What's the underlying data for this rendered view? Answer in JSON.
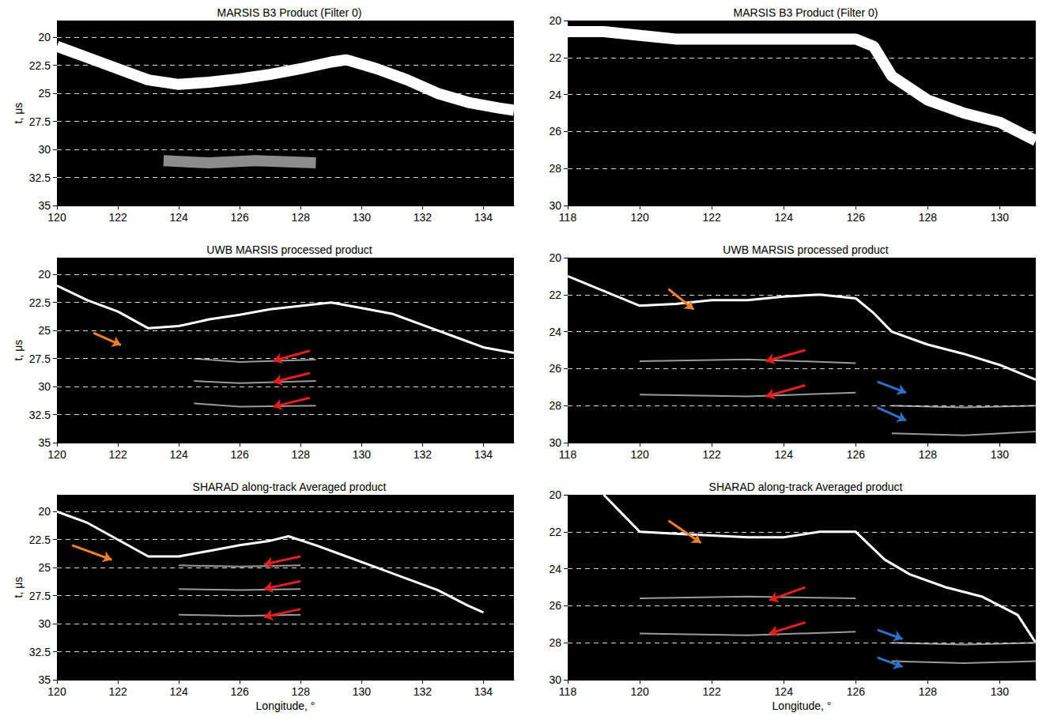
{
  "chart_data": [
    {
      "type": "line",
      "title": "MARSIS B3 Product (Filter 0)",
      "y_label": "t, μs",
      "xlim": [
        120,
        135
      ],
      "xticks": [
        120,
        122,
        124,
        126,
        128,
        130,
        132,
        134
      ],
      "ylim": [
        35,
        18.5
      ],
      "yticks": [
        20,
        22.5,
        25,
        27.5,
        30,
        32.5,
        35
      ],
      "grid": true,
      "series": [
        {
          "color": "#ffffff",
          "line_style": "thick",
          "x": [
            120,
            121,
            122,
            123,
            124,
            125,
            126,
            127,
            128,
            129,
            129.5,
            130.5,
            131.5,
            132.5,
            133.5,
            134.5,
            135
          ],
          "values": [
            20.8,
            21.8,
            22.8,
            23.8,
            24.2,
            24,
            23.7,
            23.3,
            22.8,
            22.2,
            22,
            22.8,
            23.8,
            25,
            25.8,
            26.3,
            26.5
          ]
        },
        {
          "color": "#8c8c8c",
          "line_style": "thick",
          "x": [
            123.5,
            125,
            126.5,
            128.5
          ],
          "values": [
            31,
            31.2,
            31,
            31.2
          ]
        }
      ],
      "arrows": []
    },
    {
      "type": "line",
      "title": "MARSIS B3 Product (Filter 0)",
      "xlim": [
        118,
        131
      ],
      "xticks": [
        118,
        120,
        122,
        124,
        126,
        128,
        130
      ],
      "ylim": [
        30,
        20
      ],
      "yticks": [
        20,
        22,
        24,
        26,
        28,
        30
      ],
      "grid": true,
      "series": [
        {
          "color": "#ffffff",
          "line_style": "thick",
          "x": [
            118,
            119,
            120,
            121,
            122,
            123,
            124,
            125,
            126,
            126.5,
            127,
            128,
            129,
            130,
            131
          ],
          "values": [
            20.6,
            20.6,
            20.8,
            21,
            21,
            21,
            21,
            21,
            21,
            21.4,
            23,
            24.3,
            25,
            25.5,
            26.5
          ]
        }
      ],
      "arrows": []
    },
    {
      "type": "line",
      "title": "UWB MARSIS processed product",
      "y_label": "t, μs",
      "xlim": [
        120,
        135
      ],
      "xticks": [
        120,
        122,
        124,
        126,
        128,
        130,
        132,
        134
      ],
      "ylim": [
        35,
        18.5
      ],
      "yticks": [
        20,
        22.5,
        25,
        27.5,
        30,
        32.5,
        35
      ],
      "grid": true,
      "series": [
        {
          "color": "#ffffff",
          "line_style": "solid",
          "x": [
            120,
            121,
            122,
            123,
            124,
            125,
            126,
            127,
            128,
            129,
            130,
            131,
            132,
            133,
            134,
            135
          ],
          "values": [
            21,
            22.3,
            23.3,
            24.8,
            24.6,
            24,
            23.6,
            23.1,
            22.8,
            22.5,
            23,
            23.5,
            24.5,
            25.5,
            26.5,
            27
          ]
        },
        {
          "color": "#9a9a9a",
          "line_style": "thin",
          "x": [
            124.5,
            126,
            128.5
          ],
          "values": [
            27.5,
            27.8,
            27.6
          ]
        },
        {
          "color": "#9a9a9a",
          "line_style": "thin",
          "x": [
            124.5,
            126,
            128.5
          ],
          "values": [
            29.5,
            29.7,
            29.5
          ]
        },
        {
          "color": "#9a9a9a",
          "line_style": "thin",
          "x": [
            124.5,
            126,
            128.5
          ],
          "values": [
            31.5,
            31.8,
            31.7
          ]
        }
      ],
      "arrows": [
        {
          "color": "#f07f2c",
          "from": [
            121.2,
            25.2
          ],
          "to": [
            122.1,
            26.3
          ]
        },
        {
          "color": "#e41e1e",
          "from": [
            128.3,
            26.8
          ],
          "to": [
            127.1,
            27.7
          ]
        },
        {
          "color": "#e41e1e",
          "from": [
            128.3,
            28.8
          ],
          "to": [
            127.1,
            29.6
          ]
        },
        {
          "color": "#e41e1e",
          "from": [
            128.3,
            31
          ],
          "to": [
            127.1,
            31.8
          ]
        }
      ]
    },
    {
      "type": "line",
      "title": "UWB MARSIS processed product",
      "xlim": [
        118,
        131
      ],
      "xticks": [
        118,
        120,
        122,
        124,
        126,
        128,
        130
      ],
      "ylim": [
        30,
        20
      ],
      "yticks": [
        20,
        22,
        24,
        26,
        28,
        30
      ],
      "grid": true,
      "series": [
        {
          "color": "#ffffff",
          "line_style": "solid",
          "x": [
            118,
            119,
            120,
            121,
            122,
            123,
            124,
            125,
            126,
            126.5,
            127,
            128,
            129,
            130,
            131
          ],
          "values": [
            21,
            21.8,
            22.6,
            22.5,
            22.3,
            22.3,
            22.1,
            22,
            22.2,
            23,
            24,
            24.7,
            25.2,
            25.8,
            26.6
          ]
        },
        {
          "color": "#9a9a9a",
          "line_style": "thin",
          "x": [
            120,
            123,
            126
          ],
          "values": [
            25.6,
            25.5,
            25.7
          ]
        },
        {
          "color": "#9a9a9a",
          "line_style": "thin",
          "x": [
            120,
            123,
            126
          ],
          "values": [
            27.4,
            27.5,
            27.3
          ]
        },
        {
          "color": "#9a9a9a",
          "line_style": "thin",
          "x": [
            127,
            129,
            131
          ],
          "values": [
            28,
            28.1,
            28
          ]
        },
        {
          "color": "#9a9a9a",
          "line_style": "thin",
          "x": [
            127,
            129,
            131
          ],
          "values": [
            29.5,
            29.6,
            29.4
          ]
        }
      ],
      "arrows": [
        {
          "color": "#f07f2c",
          "from": [
            120.8,
            21.7
          ],
          "to": [
            121.5,
            22.8
          ]
        },
        {
          "color": "#e41e1e",
          "from": [
            124.6,
            25
          ],
          "to": [
            123.5,
            25.6
          ]
        },
        {
          "color": "#e41e1e",
          "from": [
            124.6,
            26.9
          ],
          "to": [
            123.5,
            27.5
          ]
        },
        {
          "color": "#2f6fc8",
          "from": [
            126.6,
            26.7
          ],
          "to": [
            127.4,
            27.3
          ]
        },
        {
          "color": "#2f6fc8",
          "from": [
            126.6,
            28.1
          ],
          "to": [
            127.4,
            28.8
          ]
        }
      ]
    },
    {
      "type": "line",
      "title": "SHARAD along-track Averaged product",
      "x_label": "Longitude, °",
      "y_label": "t, μs",
      "xlim": [
        120,
        135
      ],
      "xticks": [
        120,
        122,
        124,
        126,
        128,
        130,
        132,
        134
      ],
      "ylim": [
        35,
        18.5
      ],
      "yticks": [
        20,
        22.5,
        25,
        27.5,
        30,
        32.5,
        35
      ],
      "grid": true,
      "series": [
        {
          "color": "#ffffff",
          "line_style": "solid",
          "x": [
            120,
            121,
            122,
            123,
            124,
            125,
            126,
            127,
            127.6,
            128.5,
            129.5,
            130.5,
            131.5,
            132.5,
            133.5,
            134
          ],
          "values": [
            20,
            21,
            22.5,
            24,
            24,
            23.5,
            23,
            22.6,
            22.2,
            23,
            24,
            25,
            26,
            27,
            28.4,
            29
          ]
        },
        {
          "color": "#9a9a9a",
          "line_style": "thin",
          "x": [
            124,
            126,
            128
          ],
          "values": [
            24.8,
            24.9,
            24.8
          ]
        },
        {
          "color": "#9a9a9a",
          "line_style": "thin",
          "x": [
            124,
            126,
            128
          ],
          "values": [
            26.9,
            27,
            26.9
          ]
        },
        {
          "color": "#9a9a9a",
          "line_style": "thin",
          "x": [
            124,
            126,
            128
          ],
          "values": [
            29.2,
            29.3,
            29.2
          ]
        }
      ],
      "arrows": [
        {
          "color": "#f07f2c",
          "from": [
            120.5,
            23
          ],
          "to": [
            121.8,
            24.3
          ]
        },
        {
          "color": "#e41e1e",
          "from": [
            128,
            24
          ],
          "to": [
            126.8,
            24.7
          ]
        },
        {
          "color": "#e41e1e",
          "from": [
            128,
            26.2
          ],
          "to": [
            126.8,
            26.9
          ]
        },
        {
          "color": "#e41e1e",
          "from": [
            128,
            28.7
          ],
          "to": [
            126.8,
            29.4
          ]
        }
      ]
    },
    {
      "type": "line",
      "title": "SHARAD along-track Averaged product",
      "x_label": "Longitude, °",
      "xlim": [
        118,
        131
      ],
      "xticks": [
        118,
        120,
        122,
        124,
        126,
        128,
        130
      ],
      "ylim": [
        30,
        20
      ],
      "yticks": [
        20,
        22,
        24,
        26,
        28,
        30
      ],
      "grid": true,
      "series": [
        {
          "color": "#ffffff",
          "line_style": "solid",
          "x": [
            119,
            119.5,
            120,
            121,
            122,
            123,
            124,
            125,
            126,
            126.8,
            127.5,
            128.5,
            129.5,
            130.5,
            131
          ],
          "values": [
            20,
            21,
            22,
            22.1,
            22.2,
            22.3,
            22.3,
            22,
            22,
            23.5,
            24.3,
            25,
            25.5,
            26.5,
            28
          ]
        },
        {
          "color": "#9a9a9a",
          "line_style": "thin",
          "x": [
            120,
            123,
            126
          ],
          "values": [
            25.6,
            25.5,
            25.6
          ]
        },
        {
          "color": "#9a9a9a",
          "line_style": "thin",
          "x": [
            120,
            123,
            126
          ],
          "values": [
            27.5,
            27.6,
            27.4
          ]
        },
        {
          "color": "#9a9a9a",
          "line_style": "thin",
          "x": [
            127,
            129,
            131
          ],
          "values": [
            28,
            28.1,
            28
          ]
        },
        {
          "color": "#9a9a9a",
          "line_style": "thin",
          "x": [
            127,
            129,
            131
          ],
          "values": [
            29,
            29.1,
            29
          ]
        }
      ],
      "arrows": [
        {
          "color": "#f07f2c",
          "from": [
            120.8,
            21.4
          ],
          "to": [
            121.7,
            22.6
          ]
        },
        {
          "color": "#e41e1e",
          "from": [
            124.6,
            25
          ],
          "to": [
            123.6,
            25.7
          ]
        },
        {
          "color": "#e41e1e",
          "from": [
            124.6,
            26.9
          ],
          "to": [
            123.6,
            27.5
          ]
        },
        {
          "color": "#2f6fc8",
          "from": [
            126.6,
            27.3
          ],
          "to": [
            127.3,
            27.8
          ]
        },
        {
          "color": "#2f6fc8",
          "from": [
            126.6,
            28.8
          ],
          "to": [
            127.3,
            29.3
          ]
        }
      ]
    }
  ]
}
